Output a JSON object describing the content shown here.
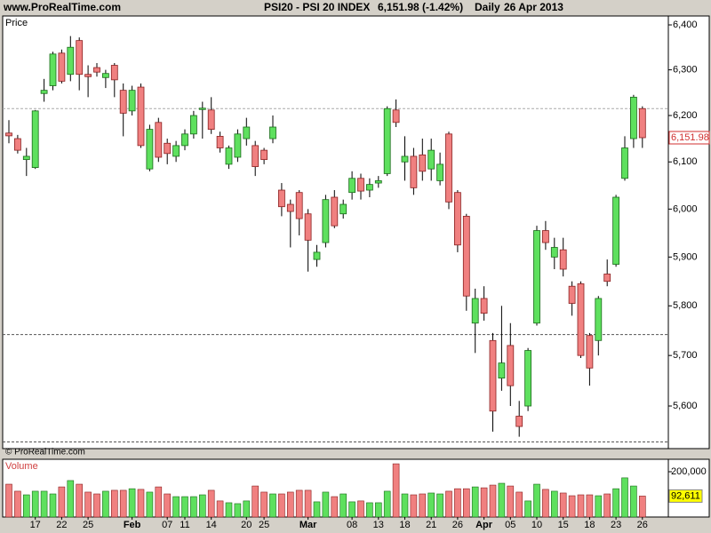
{
  "header": {
    "site": "www.ProRealTime.com",
    "title": "PSI20 - PSI 20 INDEX",
    "quote": "6,151.98 (-1.42%)",
    "period": "Daily",
    "date": "26 Apr 2013"
  },
  "watermark": "© ProRealTime.com",
  "chart_data": [
    {
      "type": "candlestick",
      "panel_label": "Price",
      "log_scale": true,
      "up_color": "#5ee05e",
      "down_color": "#f08080",
      "ylim": [
        5517,
        6420
      ],
      "yticks": [
        {
          "value": 5600,
          "label": "5,600"
        },
        {
          "value": 5700,
          "label": "5,700"
        },
        {
          "value": 5800,
          "label": "5,800"
        },
        {
          "value": 5900,
          "label": "5,900"
        },
        {
          "value": 6000,
          "label": "6,000"
        },
        {
          "value": 6100,
          "label": "6,100"
        },
        {
          "value": 6200,
          "label": "6,200"
        },
        {
          "value": 6300,
          "label": "6,300"
        },
        {
          "value": 6400,
          "label": "6,400"
        }
      ],
      "hlines": [
        6215,
        5742,
        5530
      ],
      "last_value_label": "6,151.98",
      "open": [
        6162,
        6150,
        6105,
        6088,
        6248,
        6265,
        6337,
        6290,
        6365,
        6290,
        6305,
        6283,
        6310,
        6255,
        6210,
        6262,
        6085,
        6185,
        6140,
        6112,
        6135,
        6160,
        6213,
        6212,
        6155,
        6095,
        6110,
        6150,
        6135,
        6125,
        6150,
        6040,
        6010,
        6035,
        5990,
        5895,
        5930,
        6025,
        5990,
        6035,
        6065,
        6040,
        6055,
        6075,
        6212,
        6100,
        6112,
        6115,
        6085,
        6060,
        6160,
        6035,
        5985,
        5765,
        5815,
        5730,
        5655,
        5720,
        5580,
        5600,
        5765,
        5955,
        5900,
        5915,
        5840,
        5845,
        5740,
        5730,
        5865,
        5885,
        6065,
        6150,
        6215
      ],
      "high": [
        6190,
        6158,
        6130,
        6212,
        6280,
        6340,
        6345,
        6375,
        6372,
        6310,
        6315,
        6300,
        6315,
        6270,
        6265,
        6270,
        6180,
        6195,
        6150,
        6145,
        6170,
        6210,
        6230,
        6240,
        6165,
        6135,
        6170,
        6195,
        6145,
        6130,
        6200,
        6055,
        6020,
        6040,
        6000,
        5925,
        6030,
        6040,
        6020,
        6080,
        6075,
        6065,
        6070,
        6220,
        6235,
        6155,
        6130,
        6150,
        6150,
        6120,
        6165,
        6040,
        5990,
        5835,
        5840,
        5745,
        5800,
        5765,
        5610,
        5715,
        5965,
        5975,
        5940,
        5940,
        5850,
        5850,
        5745,
        5820,
        5895,
        6030,
        6155,
        6245,
        6220
      ],
      "low": [
        6140,
        6118,
        6070,
        6085,
        6230,
        6255,
        6270,
        6275,
        6255,
        6240,
        6285,
        6260,
        6240,
        6155,
        6200,
        6130,
        6080,
        6100,
        6095,
        6100,
        6125,
        6150,
        6150,
        6160,
        6120,
        6085,
        6100,
        6135,
        6070,
        6095,
        6140,
        5985,
        5920,
        5945,
        5870,
        5880,
        5920,
        5960,
        5980,
        6020,
        6020,
        6025,
        6045,
        6070,
        6175,
        6060,
        6030,
        6060,
        6060,
        6050,
        6000,
        5910,
        5790,
        5705,
        5770,
        5550,
        5630,
        5600,
        5540,
        5590,
        5760,
        5915,
        5875,
        5860,
        5780,
        5695,
        5640,
        5700,
        5840,
        5880,
        6060,
        6130,
        6130
      ],
      "close": [
        6156,
        6125,
        6112,
        6210,
        6255,
        6335,
        6275,
        6350,
        6290,
        6285,
        6295,
        6292,
        6278,
        6205,
        6255,
        6135,
        6170,
        6110,
        6118,
        6135,
        6160,
        6200,
        6216,
        6170,
        6130,
        6130,
        6160,
        6175,
        6090,
        6105,
        6175,
        6005,
        5995,
        5980,
        5935,
        5910,
        6020,
        5965,
        6010,
        6065,
        6038,
        6052,
        6060,
        6215,
        6185,
        6112,
        6045,
        6080,
        6125,
        6095,
        6015,
        5925,
        5820,
        5815,
        5785,
        5590,
        5685,
        5640,
        5560,
        5710,
        5955,
        5930,
        5920,
        5875,
        5805,
        5700,
        5675,
        5815,
        5850,
        6025,
        6130,
        6240,
        6151.98
      ]
    },
    {
      "type": "bar",
      "panel_label": "Volume",
      "ylim": [
        0,
        255000
      ],
      "yticks": [
        {
          "value": 200000,
          "label": "200,000"
        }
      ],
      "last_value_label": "92,611",
      "categories": [
        null,
        null,
        null,
        "17",
        null,
        null,
        "22",
        null,
        null,
        "25",
        null,
        null,
        null,
        null,
        "Feb",
        null,
        null,
        null,
        "07",
        null,
        "11",
        null,
        null,
        "14",
        null,
        null,
        null,
        "20",
        null,
        "25",
        null,
        null,
        null,
        null,
        "Mar",
        null,
        null,
        null,
        null,
        "08",
        null,
        null,
        "13",
        null,
        null,
        "18",
        null,
        null,
        "21",
        null,
        null,
        "26",
        null,
        null,
        "Apr",
        null,
        null,
        "05",
        null,
        null,
        "10",
        null,
        null,
        "15",
        null,
        null,
        "18",
        null,
        null,
        "23",
        null,
        null,
        "26"
      ],
      "values": [
        145000,
        114000,
        98000,
        114000,
        114000,
        102000,
        133000,
        161000,
        145000,
        110000,
        102000,
        114000,
        118000,
        118000,
        125000,
        122000,
        110000,
        133000,
        102000,
        90000,
        90000,
        90000,
        98000,
        118000,
        71000,
        63000,
        59000,
        71000,
        137000,
        110000,
        102000,
        102000,
        110000,
        118000,
        118000,
        67000,
        110000,
        90000,
        102000,
        67000,
        71000,
        63000,
        63000,
        114000,
        235000,
        102000,
        98000,
        102000,
        106000,
        102000,
        114000,
        125000,
        125000,
        133000,
        129000,
        141000,
        149000,
        137000,
        110000,
        71000,
        145000,
        122000,
        114000,
        106000,
        94000,
        98000,
        98000,
        94000,
        102000,
        125000,
        173000,
        137000,
        92611
      ]
    }
  ]
}
